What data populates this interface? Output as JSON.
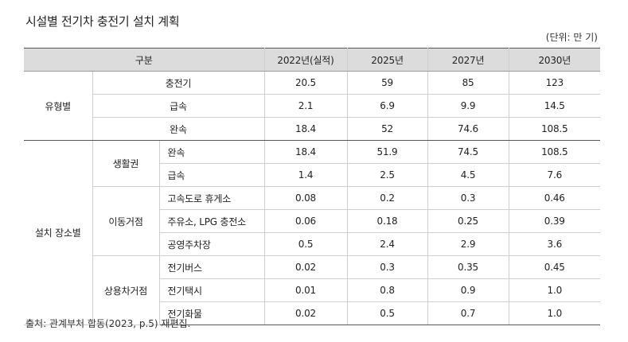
{
  "title": "시설별 전기차 충전기 설치 계획",
  "unit": "(단위: 만 기)",
  "header": {
    "category": "구분",
    "years": [
      "2022년(실적)",
      "2025년",
      "2027년",
      "2030년"
    ]
  },
  "by_type": {
    "label": "유형별",
    "rows": [
      {
        "label": "충전기",
        "values": [
          "20.5",
          "59",
          "85",
          "123"
        ]
      },
      {
        "label": "급속",
        "values": [
          "2.1",
          "6.9",
          "9.9",
          "14.5"
        ]
      },
      {
        "label": "완속",
        "values": [
          "18.4",
          "52",
          "74.6",
          "108.5"
        ]
      }
    ]
  },
  "by_location": {
    "label": "설치 장소별",
    "groups": [
      {
        "label": "생활권",
        "rows": [
          {
            "label": "완속",
            "values": [
              "18.4",
              "51.9",
              "74.5",
              "108.5"
            ]
          },
          {
            "label": "급속",
            "values": [
              "1.4",
              "2.5",
              "4.5",
              "7.6"
            ]
          }
        ]
      },
      {
        "label": "이동거점",
        "rows": [
          {
            "label": "고속도로 휴게소",
            "values": [
              "0.08",
              "0.2",
              "0.3",
              "0.46"
            ]
          },
          {
            "label": "주유소, LPG 충전소",
            "values": [
              "0.06",
              "0.18",
              "0.25",
              "0.39"
            ]
          },
          {
            "label": "공영주차장",
            "values": [
              "0.5",
              "2.4",
              "2.9",
              "3.6"
            ]
          }
        ]
      },
      {
        "label": "상용차거점",
        "rows": [
          {
            "label": "전기버스",
            "values": [
              "0.02",
              "0.3",
              "0.35",
              "0.45"
            ]
          },
          {
            "label": "전기택시",
            "values": [
              "0.01",
              "0.8",
              "0.9",
              "1.0"
            ]
          },
          {
            "label": "전기화물",
            "values": [
              "0.02",
              "0.5",
              "0.7",
              "1.0"
            ]
          }
        ]
      }
    ]
  },
  "source": "출처: 관계부처 합동(2023, p.5) 재편집."
}
